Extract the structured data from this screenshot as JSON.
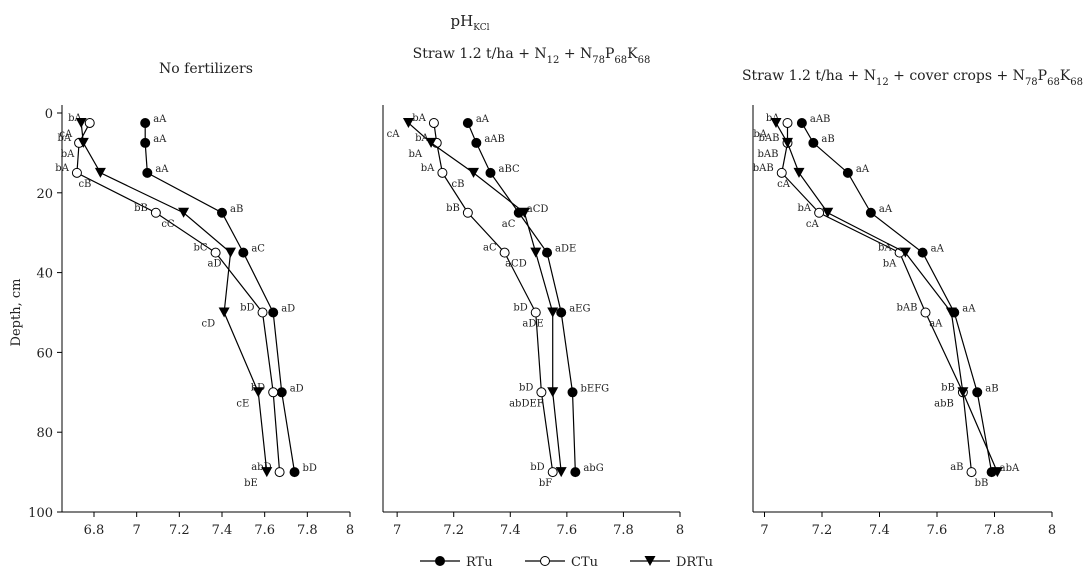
{
  "header": {
    "title": "pH",
    "subscript": "KCl"
  },
  "chart_data": [
    {
      "type": "line",
      "title": [
        "No fertilizers"
      ],
      "ylabel": "Depth, cm",
      "depth": [
        2.5,
        7.5,
        15,
        25,
        35,
        50,
        70,
        90
      ],
      "xlim": [
        6.65,
        8.0
      ],
      "xticks": [
        6.8,
        7.0,
        7.2,
        7.4,
        7.6,
        7.8,
        8.0
      ],
      "ylim": [
        0,
        100
      ],
      "yticks": [
        0,
        20,
        40,
        60,
        80,
        100
      ],
      "series": [
        {
          "name": "RTu",
          "color": "#000000",
          "marker": "filled-circle",
          "values": [
            7.04,
            7.04,
            7.05,
            7.4,
            7.5,
            7.64,
            7.68,
            7.74
          ],
          "point_labels": [
            "aA",
            "aA",
            "aA",
            "aB",
            "aC",
            "aD",
            "aD",
            "bD"
          ]
        },
        {
          "name": "CTu",
          "color": "#000000",
          "marker": "open-circle",
          "values": [
            6.78,
            6.73,
            6.72,
            7.09,
            7.37,
            7.59,
            7.64,
            7.67
          ],
          "point_labels": [
            "bA",
            "bA",
            "bA",
            "bB",
            "bC",
            "bD",
            "bD",
            "abD"
          ]
        },
        {
          "name": "DRTu",
          "color": "#000000",
          "marker": "filled-triangle-down",
          "values": [
            6.74,
            6.75,
            6.83,
            7.22,
            7.44,
            7.41,
            7.57,
            7.61
          ],
          "point_labels": [
            "cA",
            "bA",
            "cB",
            "cC",
            "aD",
            "cD",
            "cE",
            "bE"
          ]
        }
      ]
    },
    {
      "type": "line",
      "title": [
        "Straw 1.2 t/ha + N",
        "12",
        " + N",
        "78",
        "P",
        "68",
        "K",
        "68"
      ],
      "depth": [
        2.5,
        7.5,
        15,
        25,
        35,
        50,
        70,
        90
      ],
      "xlim": [
        6.95,
        8.0
      ],
      "xticks": [
        7.0,
        7.2,
        7.4,
        7.6,
        7.8,
        8.0
      ],
      "ylim": [
        0,
        100
      ],
      "series": [
        {
          "name": "RTu",
          "color": "#000000",
          "marker": "filled-circle",
          "values": [
            7.25,
            7.28,
            7.33,
            7.43,
            7.53,
            7.58,
            7.62,
            7.63
          ],
          "point_labels": [
            "aA",
            "aAB",
            "aBC",
            "aCD",
            "aDE",
            "aEG",
            "bEFG",
            "abG"
          ]
        },
        {
          "name": "CTu",
          "color": "#000000",
          "marker": "open-circle",
          "values": [
            7.13,
            7.14,
            7.16,
            7.25,
            7.38,
            7.49,
            7.51,
            7.55
          ],
          "point_labels": [
            "bA",
            "bA",
            "bA",
            "bB",
            "aC",
            "bD",
            "bD",
            "bD"
          ]
        },
        {
          "name": "DRTu",
          "color": "#000000",
          "marker": "filled-triangle-down",
          "values": [
            7.04,
            7.12,
            7.27,
            7.45,
            7.49,
            7.55,
            7.55,
            7.58
          ],
          "point_labels": [
            "cA",
            "bA",
            "cB",
            "aC",
            "aCD",
            "aDE",
            "abDEF",
            "bF"
          ]
        }
      ]
    },
    {
      "type": "line",
      "title": [
        "Straw 1.2 t/ha + N",
        "12",
        " + cover crops  + N",
        "78",
        "P",
        "68",
        "K",
        "68"
      ],
      "depth": [
        2.5,
        7.5,
        15,
        25,
        35,
        50,
        70,
        90
      ],
      "xlim": [
        6.96,
        8.0
      ],
      "xticks": [
        7.0,
        7.2,
        7.4,
        7.6,
        7.8,
        8.0
      ],
      "ylim": [
        0,
        100
      ],
      "series": [
        {
          "name": "RTu",
          "color": "#000000",
          "marker": "filled-circle",
          "values": [
            7.13,
            7.17,
            7.29,
            7.37,
            7.55,
            7.66,
            7.74,
            7.79
          ],
          "point_labels": [
            "aAB",
            "aB",
            "aA",
            "aA",
            "aA",
            "aA",
            "aB",
            "abA"
          ]
        },
        {
          "name": "CTu",
          "color": "#000000",
          "marker": "open-circle",
          "values": [
            7.08,
            7.08,
            7.06,
            7.19,
            7.47,
            7.56,
            7.69,
            7.72
          ],
          "point_labels": [
            "bA",
            "bAB",
            "bAB",
            "bA",
            "bA",
            "bAB",
            "bB",
            "aB"
          ]
        },
        {
          "name": "DRTu",
          "color": "#000000",
          "marker": "filled-triangle-down",
          "values": [
            7.04,
            7.08,
            7.12,
            7.22,
            7.49,
            7.65,
            7.69,
            7.81
          ],
          "point_labels": [
            "bA",
            "bAB",
            "cA",
            "cA",
            "bA",
            "aA",
            "abB",
            "bB"
          ]
        }
      ]
    }
  ]
}
